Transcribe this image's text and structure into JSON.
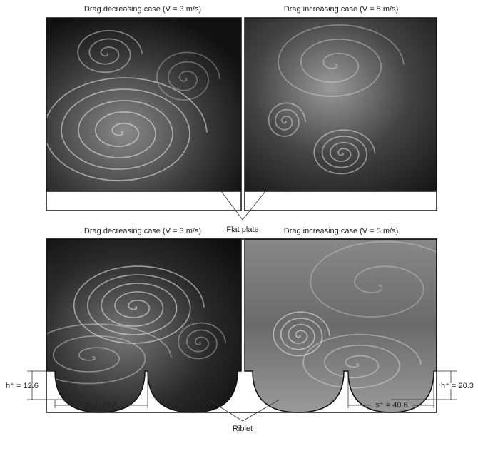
{
  "panels": [
    {
      "caption": "Drag decreasing case (V = 3 m/s)"
    },
    {
      "caption": "Drag increasing case (V = 5 m/s)"
    },
    {
      "caption": "Drag decreasing case (V = 3 m/s)"
    },
    {
      "caption": "Drag increasing case (V = 5 m/s)"
    }
  ],
  "flat_plate_label": "Flat plate",
  "riblet_label": "Riblet",
  "dimensions": [
    {
      "h": "h⁺ = 12.6",
      "s": "s⁺ = 25.2"
    },
    {
      "h": "h⁺ = 20.3",
      "s": "s⁺ = 40.6"
    }
  ]
}
